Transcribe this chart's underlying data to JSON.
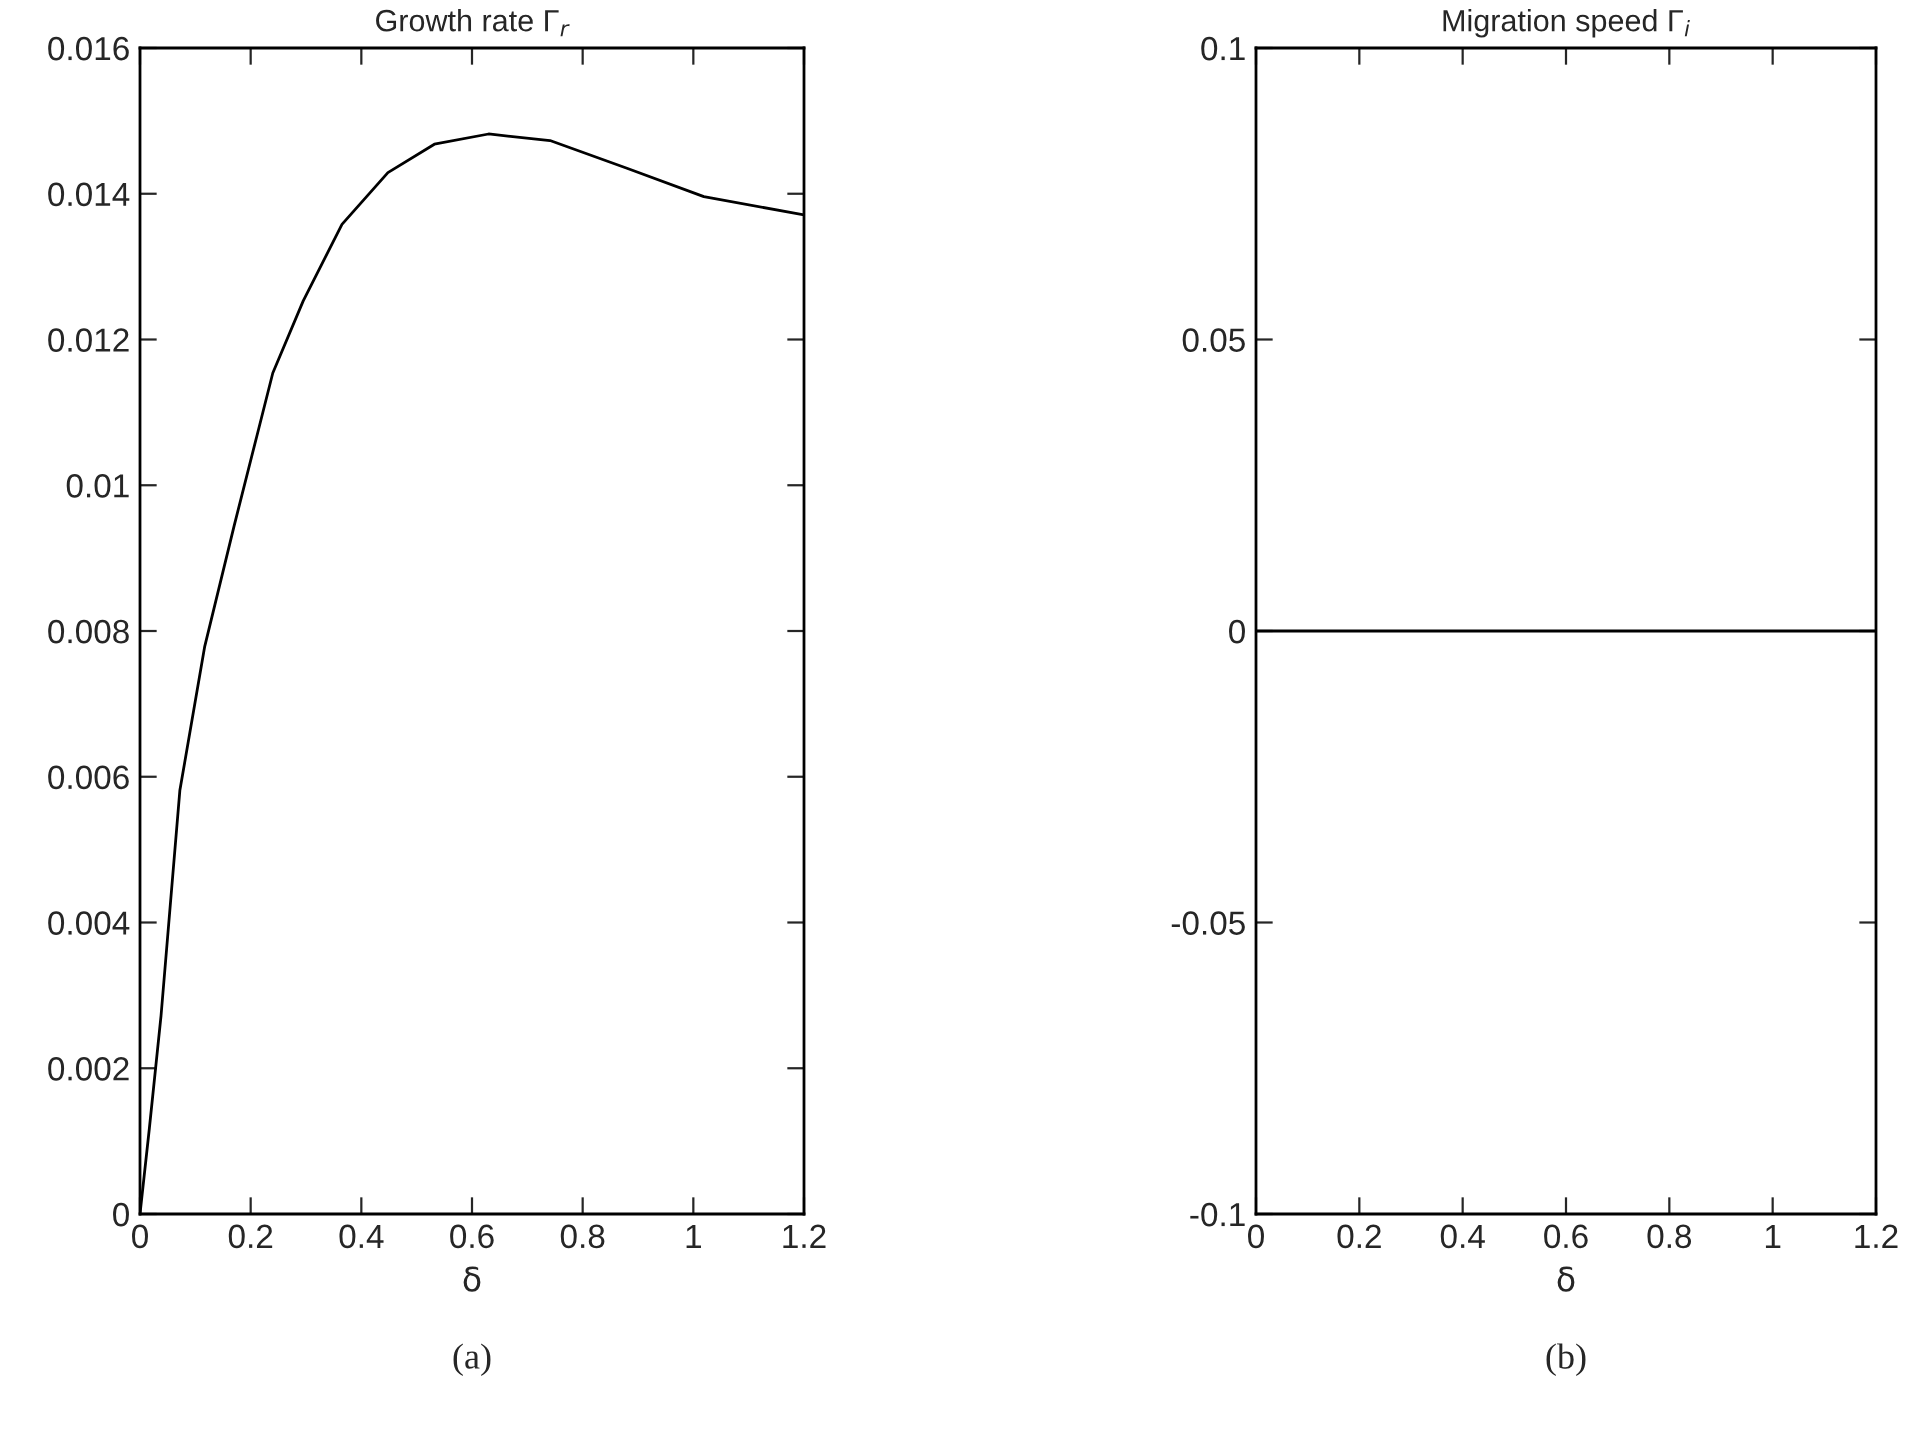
{
  "chart_data": [
    {
      "type": "line",
      "title": "Growth rate Γ$_{r}$",
      "xlabel": "δ",
      "annotations": [
        "(a)"
      ],
      "series": [
        {
          "color": "#000000",
          "x": [
            0,
            0.017,
            0.038,
            0.072,
            0.117,
            0.17,
            0.24,
            0.295,
            0.365,
            0.448,
            0.532,
            0.63,
            0.741,
            0.88,
            1.019,
            1.2
          ],
          "values": [
            0,
            0.00118,
            0.00272,
            0.00581,
            0.00779,
            0.00944,
            0.01154,
            0.01253,
            0.01358,
            0.01429,
            0.01468,
            0.01482,
            0.01473,
            0.01435,
            0.01396,
            0.01371
          ]
        }
      ],
      "xlim": [
        0,
        1.2
      ],
      "xticks": [
        0,
        0.2,
        0.4,
        0.6,
        0.8,
        1,
        1.2
      ],
      "ylim": [
        0,
        0.016
      ],
      "yticks": [
        0,
        0.002,
        0.004,
        0.006,
        0.008,
        0.01,
        0.012,
        0.014,
        0.016
      ],
      "grid": false,
      "legend": false
    },
    {
      "type": "line",
      "title": "Migration speed Γ$_{i}$",
      "xlabel": "δ",
      "annotations": [
        "(b)"
      ],
      "series": [
        {
          "color": "#000000",
          "x": [
            0,
            1.2
          ],
          "values": [
            0,
            0
          ]
        }
      ],
      "xlim": [
        0,
        1.2
      ],
      "xticks": [
        0,
        0.2,
        0.4,
        0.6,
        0.8,
        1,
        1.2
      ],
      "ylim": [
        -0.1,
        0.1
      ],
      "yticks": [
        -0.1,
        -0.05,
        0,
        0.05,
        0.1
      ],
      "grid": false,
      "legend": false
    }
  ]
}
